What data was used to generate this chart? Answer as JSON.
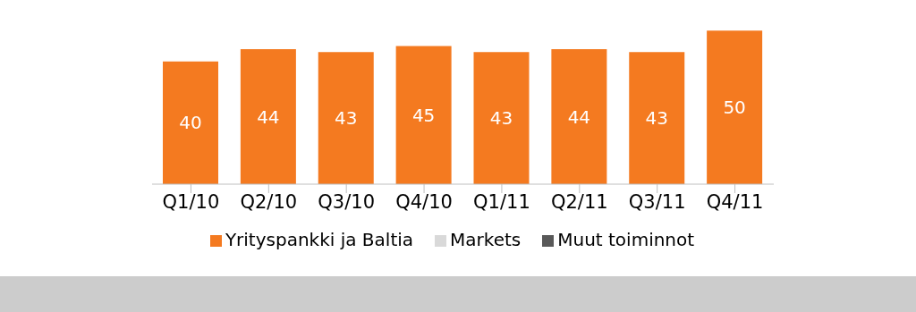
{
  "chart_data": {
    "type": "bar",
    "stacked": true,
    "categories": [
      "Q1/10",
      "Q2/10",
      "Q3/10",
      "Q4/10",
      "Q1/11",
      "Q2/11",
      "Q3/11",
      "Q4/11"
    ],
    "series": [
      {
        "name": "Yrityspankki ja Baltia",
        "color": "#f47a20",
        "values": [
          40,
          44,
          43,
          45,
          43,
          44,
          43,
          50
        ]
      },
      {
        "name": "Markets",
        "color": "#d9d9d9",
        "values": [
          null,
          null,
          null,
          null,
          null,
          null,
          null,
          null
        ]
      },
      {
        "name": "Muut toiminnot",
        "color": "#595959",
        "values": [
          null,
          null,
          null,
          null,
          null,
          null,
          null,
          null
        ]
      }
    ],
    "data_labels": true,
    "legend": "bottom",
    "grid": false
  }
}
